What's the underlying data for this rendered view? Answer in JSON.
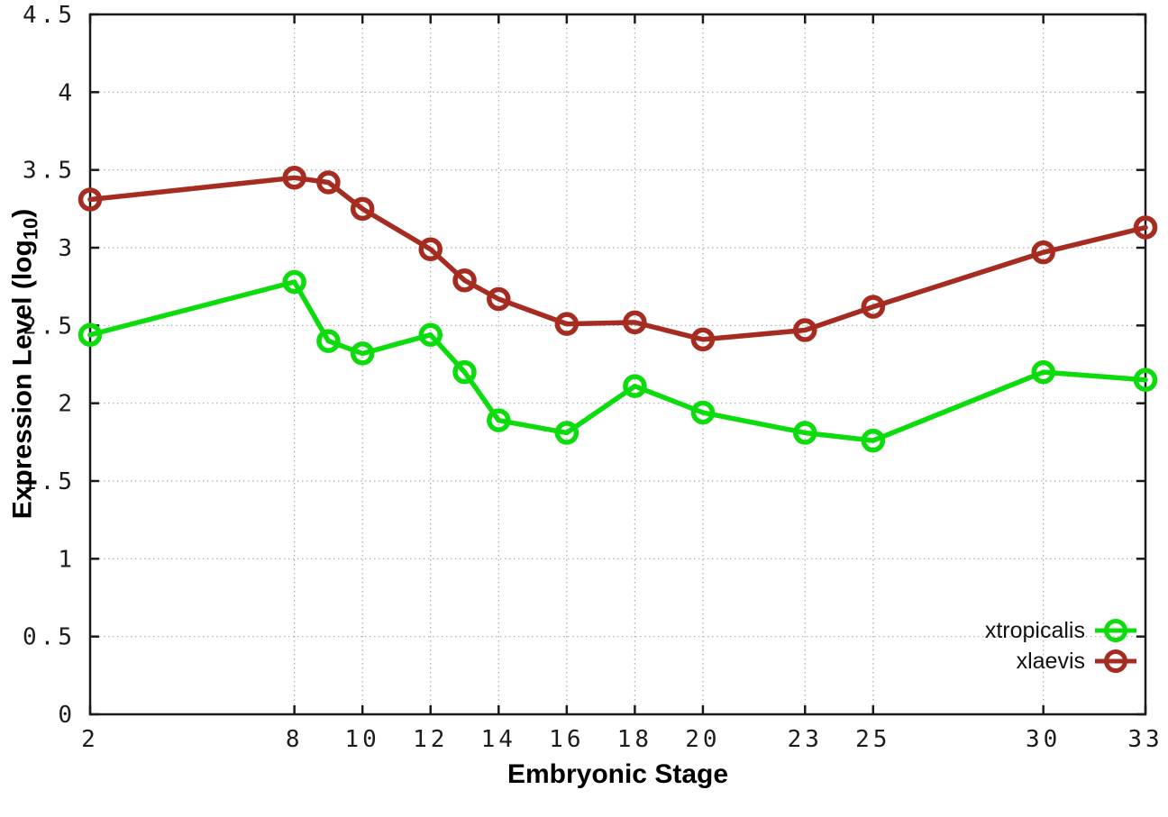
{
  "chart_data": {
    "type": "line",
    "title": "",
    "xlabel": "Embryonic Stage",
    "ylabel_main": "Expression Level (log",
    "ylabel_sub": "10",
    "ylabel_close": ")",
    "xlim": [
      2,
      33
    ],
    "ylim": [
      0,
      4.5
    ],
    "grid": true,
    "legend_position": "bottom-right",
    "x_ticks": [
      2,
      8,
      10,
      12,
      14,
      16,
      18,
      20,
      23,
      25,
      30,
      33
    ],
    "x_tick_labels": [
      "2",
      "8",
      "10",
      "12",
      "14",
      "16",
      "18",
      "20",
      "23",
      "25",
      "30",
      "33"
    ],
    "y_ticks": [
      0,
      0.5,
      1,
      1.5,
      2,
      2.5,
      3,
      3.5,
      4,
      4.5
    ],
    "y_tick_labels": [
      "0",
      "0.5",
      "1",
      "1.5",
      "2",
      "2.5",
      "3",
      "3.5",
      "4",
      "4.5"
    ],
    "x": [
      2,
      8,
      9,
      10,
      12,
      13,
      14,
      16,
      18,
      20,
      23,
      25,
      30,
      33
    ],
    "series": [
      {
        "name": "xtropicalis",
        "color": "#0cdc0c",
        "marker": "open-circle",
        "values": [
          2.44,
          2.78,
          2.4,
          2.32,
          2.44,
          2.2,
          1.89,
          1.81,
          2.11,
          1.94,
          1.81,
          1.76,
          2.2,
          2.15
        ]
      },
      {
        "name": "xlaevis",
        "color": "#a62c22",
        "marker": "open-circle",
        "values": [
          3.31,
          3.45,
          3.42,
          3.25,
          2.99,
          2.79,
          2.67,
          2.51,
          2.52,
          2.41,
          2.47,
          2.62,
          2.97,
          3.13
        ]
      }
    ]
  }
}
